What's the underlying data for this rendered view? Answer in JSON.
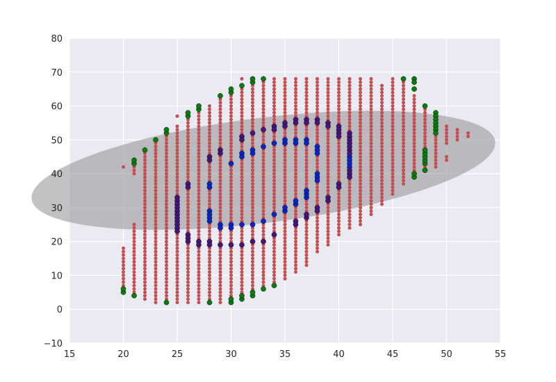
{
  "chart_data": {
    "type": "scatter",
    "title": "",
    "xlabel": "",
    "ylabel": "",
    "xlim": [
      15,
      55
    ],
    "ylim": [
      -10,
      80
    ],
    "x_ticks": [
      "15",
      "20",
      "25",
      "30",
      "35",
      "40",
      "45",
      "50",
      "55"
    ],
    "y_ticks": [
      "−10",
      "0",
      "10",
      "20",
      "30",
      "40",
      "50",
      "60",
      "70",
      "80"
    ],
    "grid": true,
    "style": "seaborn darkgrid",
    "colors": {
      "background": "#eaeaf2",
      "grid": "#ffffff",
      "red": "#c44e52",
      "green": "#0c7a0c",
      "blue": "#0b24c4",
      "purple": "#45157a",
      "ellipse": "#8f8f94"
    },
    "ellipse": {
      "center": [
        33,
        41
      ],
      "semi_major": 24,
      "semi_minor_data": 14,
      "angle_deg": 33,
      "opacity": 0.55
    },
    "series": [
      {
        "color": "red",
        "marker_size": "small",
        "x_columns": [
          {
            "x": 20,
            "y_from": 5,
            "y_to": 18
          },
          {
            "x": 21,
            "y_from": 5,
            "y_to": 25
          },
          {
            "x": 21,
            "y_from": 40,
            "y_to": 43
          },
          {
            "x": 22,
            "y_from": 3,
            "y_to": 47
          },
          {
            "x": 23,
            "y_from": 2,
            "y_to": 50
          },
          {
            "x": 24,
            "y_from": 3,
            "y_to": 52
          },
          {
            "x": 25,
            "y_from": 2,
            "y_to": 54
          },
          {
            "x": 26,
            "y_from": 2,
            "y_to": 57
          },
          {
            "x": 27,
            "y_from": 2,
            "y_to": 59
          },
          {
            "x": 28,
            "y_from": 2,
            "y_to": 60
          },
          {
            "x": 29,
            "y_from": 2,
            "y_to": 62
          },
          {
            "x": 30,
            "y_from": 2,
            "y_to": 64
          },
          {
            "x": 31,
            "y_from": 3,
            "y_to": 66
          },
          {
            "x": 32,
            "y_from": 5,
            "y_to": 68
          },
          {
            "x": 33,
            "y_from": 6,
            "y_to": 68
          },
          {
            "x": 34,
            "y_from": 7,
            "y_to": 68
          },
          {
            "x": 35,
            "y_from": 9,
            "y_to": 68
          },
          {
            "x": 36,
            "y_from": 11,
            "y_to": 68
          },
          {
            "x": 37,
            "y_from": 13,
            "y_to": 68
          },
          {
            "x": 38,
            "y_from": 17,
            "y_to": 68
          },
          {
            "x": 39,
            "y_from": 19,
            "y_to": 68
          },
          {
            "x": 40,
            "y_from": 22,
            "y_to": 68
          },
          {
            "x": 41,
            "y_from": 24,
            "y_to": 68
          },
          {
            "x": 42,
            "y_from": 25,
            "y_to": 68
          },
          {
            "x": 43,
            "y_from": 28,
            "y_to": 68
          },
          {
            "x": 44,
            "y_from": 31,
            "y_to": 66
          },
          {
            "x": 45,
            "y_from": 34,
            "y_to": 68
          },
          {
            "x": 46,
            "y_from": 37,
            "y_to": 67
          },
          {
            "x": 47,
            "y_from": 40,
            "y_to": 63
          },
          {
            "x": 48,
            "y_from": 41,
            "y_to": 59
          },
          {
            "x": 49,
            "y_from": 42,
            "y_to": 57
          },
          {
            "x": 50,
            "y_from": 49,
            "y_to": 54
          },
          {
            "x": 51,
            "y_from": 50,
            "y_to": 53
          },
          {
            "x": 52,
            "y_from": 51,
            "y_to": 52
          }
        ],
        "extra_points": [
          [
            20,
            42
          ],
          [
            25,
            57
          ],
          [
            31,
            68
          ],
          [
            50,
            44
          ],
          [
            50,
            45
          ],
          [
            48,
            60
          ]
        ]
      },
      {
        "color": "green",
        "marker_size": "large",
        "points": [
          [
            20,
            5
          ],
          [
            20,
            6
          ],
          [
            21,
            4
          ],
          [
            21,
            43
          ],
          [
            21,
            44
          ],
          [
            22,
            47
          ],
          [
            23,
            50
          ],
          [
            24,
            2
          ],
          [
            24,
            52
          ],
          [
            24,
            53
          ],
          [
            26,
            57
          ],
          [
            26,
            58
          ],
          [
            27,
            59
          ],
          [
            27,
            60
          ],
          [
            28,
            2
          ],
          [
            29,
            63
          ],
          [
            30,
            2
          ],
          [
            30,
            3
          ],
          [
            30,
            64
          ],
          [
            30,
            65
          ],
          [
            31,
            3
          ],
          [
            31,
            4
          ],
          [
            31,
            66
          ],
          [
            32,
            4
          ],
          [
            32,
            5
          ],
          [
            32,
            67
          ],
          [
            32,
            68
          ],
          [
            33,
            6
          ],
          [
            33,
            68
          ],
          [
            34,
            7
          ],
          [
            46,
            68
          ],
          [
            47,
            68
          ],
          [
            47,
            67
          ],
          [
            47,
            65
          ],
          [
            47,
            39
          ],
          [
            47,
            40
          ],
          [
            48,
            60
          ],
          [
            48,
            43
          ],
          [
            48,
            44
          ],
          [
            48,
            45
          ],
          [
            48,
            46
          ],
          [
            48,
            47
          ],
          [
            48,
            41
          ],
          [
            49,
            58
          ],
          [
            49,
            57
          ],
          [
            49,
            56
          ],
          [
            49,
            55
          ],
          [
            49,
            54
          ],
          [
            49,
            53
          ],
          [
            49,
            52
          ]
        ]
      },
      {
        "color": "blue",
        "marker_size": "large",
        "points": [
          [
            28,
            37
          ],
          [
            28,
            36
          ],
          [
            28,
            29
          ],
          [
            28,
            28
          ],
          [
            28,
            27
          ],
          [
            28,
            26
          ],
          [
            29,
            25
          ],
          [
            29,
            24
          ],
          [
            30,
            43
          ],
          [
            30,
            25
          ],
          [
            30,
            24
          ],
          [
            31,
            46
          ],
          [
            31,
            45
          ],
          [
            31,
            25
          ],
          [
            32,
            47
          ],
          [
            32,
            46
          ],
          [
            32,
            25
          ],
          [
            33,
            48
          ],
          [
            33,
            26
          ],
          [
            34,
            49
          ],
          [
            34,
            28
          ],
          [
            35,
            49
          ],
          [
            35,
            50
          ],
          [
            35,
            29
          ],
          [
            35,
            30
          ],
          [
            36,
            50
          ],
          [
            36,
            49
          ],
          [
            36,
            31
          ],
          [
            36,
            32
          ],
          [
            37,
            50
          ],
          [
            37,
            49
          ],
          [
            37,
            33
          ],
          [
            37,
            34
          ],
          [
            37,
            35
          ],
          [
            38,
            48
          ],
          [
            38,
            47
          ],
          [
            38,
            46
          ],
          [
            38,
            40
          ],
          [
            38,
            39
          ],
          [
            38,
            38
          ],
          [
            41,
            45
          ],
          [
            41,
            44
          ],
          [
            41,
            43
          ],
          [
            41,
            42
          ]
        ]
      },
      {
        "color": "purple",
        "marker_size": "large",
        "points": [
          [
            25,
            33
          ],
          [
            25,
            32
          ],
          [
            25,
            31
          ],
          [
            25,
            30
          ],
          [
            25,
            29
          ],
          [
            25,
            28
          ],
          [
            25,
            27
          ],
          [
            25,
            26
          ],
          [
            25,
            25
          ],
          [
            25,
            24
          ],
          [
            25,
            23
          ],
          [
            26,
            37
          ],
          [
            26,
            36
          ],
          [
            26,
            22
          ],
          [
            26,
            21
          ],
          [
            26,
            20
          ],
          [
            27,
            20
          ],
          [
            27,
            19
          ],
          [
            28,
            45
          ],
          [
            28,
            44
          ],
          [
            28,
            20
          ],
          [
            28,
            19
          ],
          [
            29,
            47
          ],
          [
            29,
            46
          ],
          [
            29,
            19
          ],
          [
            30,
            19
          ],
          [
            31,
            51
          ],
          [
            31,
            50
          ],
          [
            31,
            19
          ],
          [
            32,
            52
          ],
          [
            32,
            20
          ],
          [
            33,
            53
          ],
          [
            33,
            20
          ],
          [
            34,
            54
          ],
          [
            34,
            53
          ],
          [
            34,
            22
          ],
          [
            35,
            55
          ],
          [
            35,
            54
          ],
          [
            36,
            56
          ],
          [
            36,
            55
          ],
          [
            36,
            26
          ],
          [
            36,
            25
          ],
          [
            37,
            56
          ],
          [
            37,
            55
          ],
          [
            37,
            27
          ],
          [
            37,
            28
          ],
          [
            38,
            56
          ],
          [
            38,
            55
          ],
          [
            38,
            30
          ],
          [
            38,
            29
          ],
          [
            39,
            55
          ],
          [
            39,
            54
          ],
          [
            39,
            33
          ],
          [
            39,
            32
          ],
          [
            40,
            54
          ],
          [
            40,
            53
          ],
          [
            40,
            52
          ],
          [
            40,
            51
          ],
          [
            40,
            37
          ],
          [
            40,
            36
          ],
          [
            41,
            52
          ],
          [
            41,
            51
          ],
          [
            41,
            50
          ],
          [
            41,
            49
          ],
          [
            41,
            48
          ],
          [
            41,
            47
          ],
          [
            41,
            46
          ],
          [
            41,
            41
          ],
          [
            41,
            40
          ],
          [
            41,
            39
          ]
        ]
      }
    ]
  }
}
